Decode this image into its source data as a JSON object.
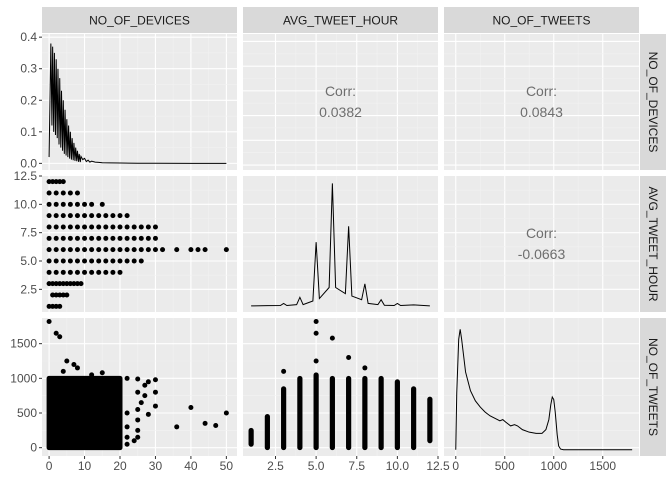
{
  "chart_data": {
    "type": "pairs",
    "variables": [
      "NO_OF_DEVICES",
      "AVG_TWEET_HOUR",
      "NO_OF_TWEETS"
    ],
    "ranges": {
      "NO_OF_DEVICES": [
        -2,
        53
      ],
      "AVG_TWEET_HOUR": [
        0.5,
        12.5
      ],
      "NO_OF_TWEETS": [
        -120,
        1870
      ]
    },
    "ticks": {
      "NO_OF_DEVICES": {
        "values": [
          0,
          10,
          20,
          30,
          40,
          50
        ],
        "labels": [
          "0",
          "10",
          "20",
          "30",
          "40",
          "50"
        ]
      },
      "AVG_TWEET_HOUR": {
        "values": [
          2.5,
          5.0,
          7.5,
          10.0,
          12.5
        ],
        "labels": [
          "2.5",
          "5.0",
          "7.5",
          "10.0",
          "12.5"
        ]
      },
      "NO_OF_TWEETS": {
        "values": [
          0,
          500,
          1000,
          1500
        ],
        "labels": [
          "0",
          "500",
          "1000",
          "1500"
        ]
      }
    },
    "density_axis": {
      "range": [
        -0.021,
        0.41
      ],
      "values": [
        0,
        0.1,
        0.2,
        0.3,
        0.4
      ],
      "labels": [
        "0.0",
        "0.1",
        "0.2",
        "0.3",
        "0.4"
      ]
    },
    "correlations": [
      {
        "row": 0,
        "col": 1,
        "label": "Corr:",
        "value": "0.0382"
      },
      {
        "row": 0,
        "col": 2,
        "label": "Corr:",
        "value": "0.0843"
      },
      {
        "row": 1,
        "col": 2,
        "label": "Corr:",
        "value": "-0.0663"
      }
    ],
    "density_devices": [
      [
        0,
        0.02
      ],
      [
        0.5,
        0.38
      ],
      [
        0.8,
        0.12
      ],
      [
        1,
        0.37
      ],
      [
        1.3,
        0.1
      ],
      [
        1.5,
        0.35
      ],
      [
        1.8,
        0.09
      ],
      [
        2,
        0.33
      ],
      [
        2.3,
        0.08
      ],
      [
        2.5,
        0.3
      ],
      [
        2.8,
        0.06
      ],
      [
        3,
        0.27
      ],
      [
        3.3,
        0.05
      ],
      [
        3.5,
        0.23
      ],
      [
        3.8,
        0.04
      ],
      [
        4,
        0.2
      ],
      [
        4.3,
        0.03
      ],
      [
        4.5,
        0.17
      ],
      [
        4.8,
        0.025
      ],
      [
        5,
        0.14
      ],
      [
        5.3,
        0.02
      ],
      [
        5.5,
        0.12
      ],
      [
        5.8,
        0.015
      ],
      [
        6,
        0.1
      ],
      [
        6.3,
        0.012
      ],
      [
        6.5,
        0.08
      ],
      [
        6.8,
        0.01
      ],
      [
        7,
        0.065
      ],
      [
        7.3,
        0.008
      ],
      [
        7.5,
        0.05
      ],
      [
        7.8,
        0.007
      ],
      [
        8,
        0.04
      ],
      [
        8.3,
        0.005
      ],
      [
        8.5,
        0.03
      ],
      [
        8.8,
        0.004
      ],
      [
        9,
        0.022
      ],
      [
        9.5,
        0.012
      ],
      [
        10,
        0.016
      ],
      [
        10.5,
        0.006
      ],
      [
        11,
        0.01
      ],
      [
        11.5,
        0.004
      ],
      [
        12,
        0.007
      ],
      [
        13,
        0.004
      ],
      [
        14,
        0.003
      ],
      [
        15,
        0.002
      ],
      [
        17,
        0.0015
      ],
      [
        20,
        0.001
      ],
      [
        25,
        0.0005
      ],
      [
        30,
        0.0002
      ],
      [
        40,
        0.0001
      ],
      [
        50,
        0
      ]
    ],
    "density_hour": [
      [
        1,
        0
      ],
      [
        2,
        0.002
      ],
      [
        2.8,
        0.003
      ],
      [
        3,
        0.02
      ],
      [
        3.2,
        0.003
      ],
      [
        3.8,
        0.01
      ],
      [
        4,
        0.07
      ],
      [
        4.2,
        0.01
      ],
      [
        4.8,
        0.04
      ],
      [
        5,
        0.52
      ],
      [
        5.2,
        0.06
      ],
      [
        5.8,
        0.15
      ],
      [
        6,
        1.0
      ],
      [
        6.2,
        0.15
      ],
      [
        6.8,
        0.1
      ],
      [
        7,
        0.65
      ],
      [
        7.2,
        0.08
      ],
      [
        7.8,
        0.05
      ],
      [
        8,
        0.18
      ],
      [
        8.2,
        0.02
      ],
      [
        8.8,
        0.01
      ],
      [
        9,
        0.05
      ],
      [
        9.2,
        0.005
      ],
      [
        9.8,
        0.003
      ],
      [
        10,
        0.02
      ],
      [
        10.2,
        0.003
      ],
      [
        11,
        0.008
      ],
      [
        12,
        0
      ]
    ],
    "density_tweets": [
      [
        0,
        0
      ],
      [
        10,
        0.45
      ],
      [
        30,
        0.88
      ],
      [
        45,
        0.96
      ],
      [
        60,
        0.88
      ],
      [
        100,
        0.62
      ],
      [
        150,
        0.47
      ],
      [
        200,
        0.39
      ],
      [
        250,
        0.34
      ],
      [
        300,
        0.3
      ],
      [
        350,
        0.27
      ],
      [
        400,
        0.25
      ],
      [
        450,
        0.23
      ],
      [
        480,
        0.24
      ],
      [
        510,
        0.22
      ],
      [
        560,
        0.19
      ],
      [
        600,
        0.2
      ],
      [
        630,
        0.19
      ],
      [
        680,
        0.16
      ],
      [
        750,
        0.14
      ],
      [
        820,
        0.13
      ],
      [
        880,
        0.13
      ],
      [
        920,
        0.16
      ],
      [
        950,
        0.24
      ],
      [
        970,
        0.36
      ],
      [
        985,
        0.42
      ],
      [
        1000,
        0.4
      ],
      [
        1015,
        0.3
      ],
      [
        1035,
        0.12
      ],
      [
        1050,
        0.03
      ],
      [
        1070,
        0.005
      ],
      [
        1100,
        0
      ],
      [
        1500,
        0
      ],
      [
        1800,
        0
      ]
    ],
    "scatter_devices_hour": [
      [
        0,
        1
      ],
      [
        1,
        1
      ],
      [
        2,
        1
      ],
      [
        3,
        1
      ],
      [
        1,
        2
      ],
      [
        2,
        2
      ],
      [
        3,
        2
      ],
      [
        4,
        2
      ],
      [
        5,
        2
      ],
      [
        0,
        3
      ],
      [
        1,
        3
      ],
      [
        2,
        3
      ],
      [
        3,
        3
      ],
      [
        4,
        3
      ],
      [
        5,
        3
      ],
      [
        6,
        3
      ],
      [
        7,
        3
      ],
      [
        8,
        3
      ],
      [
        9,
        3
      ],
      [
        0,
        4
      ],
      [
        2,
        4
      ],
      [
        4,
        4
      ],
      [
        6,
        4
      ],
      [
        8,
        4
      ],
      [
        10,
        4
      ],
      [
        12,
        4
      ],
      [
        14,
        4
      ],
      [
        16,
        4
      ],
      [
        18,
        4
      ],
      [
        20,
        4
      ],
      [
        0,
        5
      ],
      [
        2,
        5
      ],
      [
        4,
        5
      ],
      [
        6,
        5
      ],
      [
        8,
        5
      ],
      [
        10,
        5
      ],
      [
        12,
        5
      ],
      [
        14,
        5
      ],
      [
        16,
        5
      ],
      [
        18,
        5
      ],
      [
        20,
        5
      ],
      [
        22,
        5
      ],
      [
        24,
        5
      ],
      [
        26,
        5
      ],
      [
        0,
        6
      ],
      [
        2,
        6
      ],
      [
        4,
        6
      ],
      [
        6,
        6
      ],
      [
        8,
        6
      ],
      [
        10,
        6
      ],
      [
        12,
        6
      ],
      [
        14,
        6
      ],
      [
        16,
        6
      ],
      [
        18,
        6
      ],
      [
        20,
        6
      ],
      [
        22,
        6
      ],
      [
        24,
        6
      ],
      [
        26,
        6
      ],
      [
        28,
        6
      ],
      [
        30,
        6
      ],
      [
        32,
        6
      ],
      [
        36,
        6
      ],
      [
        40,
        6
      ],
      [
        42,
        6
      ],
      [
        44,
        6
      ],
      [
        50,
        6
      ],
      [
        0,
        7
      ],
      [
        2,
        7
      ],
      [
        4,
        7
      ],
      [
        6,
        7
      ],
      [
        8,
        7
      ],
      [
        10,
        7
      ],
      [
        12,
        7
      ],
      [
        14,
        7
      ],
      [
        16,
        7
      ],
      [
        18,
        7
      ],
      [
        20,
        7
      ],
      [
        22,
        7
      ],
      [
        24,
        7
      ],
      [
        26,
        7
      ],
      [
        28,
        7
      ],
      [
        30,
        7
      ],
      [
        0,
        8
      ],
      [
        2,
        8
      ],
      [
        4,
        8
      ],
      [
        6,
        8
      ],
      [
        8,
        8
      ],
      [
        10,
        8
      ],
      [
        12,
        8
      ],
      [
        14,
        8
      ],
      [
        16,
        8
      ],
      [
        18,
        8
      ],
      [
        20,
        8
      ],
      [
        22,
        8
      ],
      [
        24,
        8
      ],
      [
        26,
        8
      ],
      [
        28,
        8
      ],
      [
        30,
        8
      ],
      [
        0,
        9
      ],
      [
        2,
        9
      ],
      [
        4,
        9
      ],
      [
        6,
        9
      ],
      [
        8,
        9
      ],
      [
        10,
        9
      ],
      [
        12,
        9
      ],
      [
        14,
        9
      ],
      [
        16,
        9
      ],
      [
        18,
        9
      ],
      [
        20,
        9
      ],
      [
        22,
        9
      ],
      [
        0,
        10
      ],
      [
        2,
        10
      ],
      [
        4,
        10
      ],
      [
        6,
        10
      ],
      [
        8,
        10
      ],
      [
        10,
        10
      ],
      [
        12,
        10
      ],
      [
        15,
        10
      ],
      [
        0,
        11
      ],
      [
        2,
        11
      ],
      [
        4,
        11
      ],
      [
        6,
        11
      ],
      [
        8,
        11
      ],
      [
        0,
        12
      ],
      [
        1,
        12
      ],
      [
        2,
        12
      ],
      [
        3,
        12
      ],
      [
        4,
        12
      ]
    ],
    "scatter_devices_tweets": {
      "dense_block": {
        "x": [
          0,
          20
        ],
        "y": [
          0,
          1000
        ]
      },
      "points": [
        [
          0,
          1820
        ],
        [
          2,
          1650
        ],
        [
          3,
          1600
        ],
        [
          5,
          1250
        ],
        [
          7,
          1200
        ],
        [
          4,
          1100
        ],
        [
          8,
          1150
        ],
        [
          12,
          1050
        ],
        [
          15,
          1080
        ],
        [
          22,
          1000
        ],
        [
          25,
          990
        ],
        [
          28,
          950
        ],
        [
          30,
          980
        ],
        [
          27,
          900
        ],
        [
          25,
          800
        ],
        [
          27,
          750
        ],
        [
          30,
          800
        ],
        [
          26,
          650
        ],
        [
          30,
          600
        ],
        [
          22,
          500
        ],
        [
          25,
          550
        ],
        [
          28,
          480
        ],
        [
          25,
          400
        ],
        [
          22,
          300
        ],
        [
          25,
          250
        ],
        [
          20,
          200
        ],
        [
          22,
          150
        ],
        [
          24,
          100
        ],
        [
          25,
          150
        ],
        [
          22,
          50
        ],
        [
          20,
          20
        ],
        [
          36,
          300
        ],
        [
          40,
          580
        ],
        [
          44,
          350
        ],
        [
          47,
          320
        ],
        [
          50,
          500
        ]
      ]
    },
    "hour_tweets": [
      {
        "x": 1,
        "ymin": 50,
        "ymax": 250
      },
      {
        "x": 2,
        "ymin": 0,
        "ymax": 450
      },
      {
        "x": 3,
        "ymin": 0,
        "ymax": 850
      },
      {
        "x": 4,
        "ymin": 0,
        "ymax": 1000
      },
      {
        "x": 5,
        "ymin": 0,
        "ymax": 1050
      },
      {
        "x": 6,
        "ymin": 0,
        "ymax": 1000
      },
      {
        "x": 7,
        "ymin": 0,
        "ymax": 1000
      },
      {
        "x": 8,
        "ymin": 0,
        "ymax": 1000
      },
      {
        "x": 9,
        "ymin": 0,
        "ymax": 1000
      },
      {
        "x": 10,
        "ymin": 0,
        "ymax": 950
      },
      {
        "x": 11,
        "ymin": 0,
        "ymax": 850
      },
      {
        "x": 12,
        "ymin": 100,
        "ymax": 700
      }
    ],
    "hour_tweets_outliers": [
      [
        5,
        1820
      ],
      [
        5,
        1650
      ],
      [
        6,
        1580
      ],
      [
        7,
        1300
      ],
      [
        5,
        1250
      ],
      [
        8,
        1150
      ],
      [
        3,
        1100
      ]
    ],
    "grid": true,
    "legend": "none"
  },
  "colors": {
    "panel_bg": "#ebebeb",
    "grid_major": "#ffffff",
    "grid_minor": "#f2f2f2",
    "strip_bg": "#d9d9d9",
    "strip_text": "#1a1a1a",
    "tick_text": "#4d4d4d",
    "corr_text": "#6e6e6e",
    "mark": "#000000"
  }
}
